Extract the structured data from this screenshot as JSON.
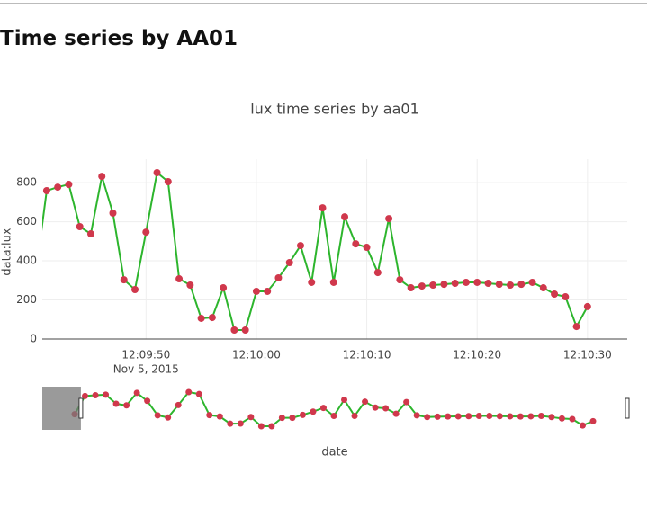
{
  "page_title": "Time series by AA01",
  "chart_data": {
    "type": "line",
    "title": "lux time series by aa01",
    "x_axis_label": "date",
    "y_axis_label": "data:lux",
    "x_date_label": "Nov 5, 2015",
    "x": [
      "2015-11-05 12:09:40",
      "2015-11-05 12:09:41",
      "2015-11-05 12:09:42",
      "2015-11-05 12:09:43",
      "2015-11-05 12:09:44",
      "2015-11-05 12:09:45",
      "2015-11-05 12:09:46",
      "2015-11-05 12:09:47",
      "2015-11-05 12:09:48",
      "2015-11-05 12:09:49",
      "2015-11-05 12:09:50",
      "2015-11-05 12:09:51",
      "2015-11-05 12:09:52",
      "2015-11-05 12:09:53",
      "2015-11-05 12:09:54",
      "2015-11-05 12:09:55",
      "2015-11-05 12:09:56",
      "2015-11-05 12:09:57",
      "2015-11-05 12:09:58",
      "2015-11-05 12:09:59",
      "2015-11-05 12:10:00",
      "2015-11-05 12:10:01",
      "2015-11-05 12:10:02",
      "2015-11-05 12:10:03",
      "2015-11-05 12:10:04",
      "2015-11-05 12:10:05",
      "2015-11-05 12:10:06",
      "2015-11-05 12:10:07",
      "2015-11-05 12:10:08",
      "2015-11-05 12:10:09",
      "2015-11-05 12:10:10",
      "2015-11-05 12:10:11",
      "2015-11-05 12:10:12",
      "2015-11-05 12:10:13",
      "2015-11-05 12:10:14",
      "2015-11-05 12:10:15",
      "2015-11-05 12:10:16",
      "2015-11-05 12:10:17",
      "2015-11-05 12:10:18",
      "2015-11-05 12:10:19",
      "2015-11-05 12:10:20",
      "2015-11-05 12:10:21",
      "2015-11-05 12:10:22",
      "2015-11-05 12:10:23",
      "2015-11-05 12:10:24",
      "2015-11-05 12:10:25",
      "2015-11-05 12:10:26",
      "2015-11-05 12:10:27",
      "2015-11-05 12:10:28",
      "2015-11-05 12:10:29",
      "2015-11-05 12:10:30"
    ],
    "series": [
      {
        "name": "lux",
        "color": "#2db52d",
        "marker_color": "#d0384c",
        "values": [
          330,
          759,
          777,
          791,
          575,
          538,
          832,
          644,
          303,
          253,
          547,
          851,
          805,
          308,
          276,
          106,
          110,
          262,
          46,
          46,
          244,
          244,
          313,
          391,
          478,
          290,
          671,
          290,
          625,
          487,
          469,
          340,
          616,
          303,
          262,
          271,
          276,
          280,
          285,
          290,
          290,
          285,
          280,
          276,
          280,
          290,
          262,
          230,
          216,
          64,
          166
        ]
      }
    ],
    "xlim": [
      "2015-11-05 12:09:40.6",
      "2015-11-05 12:10:33.6"
    ],
    "xticks": [
      {
        "value": "2015-11-05 12:09:50",
        "label": "12:09:50"
      },
      {
        "value": "2015-11-05 12:10:00",
        "label": "12:10:00"
      },
      {
        "value": "2015-11-05 12:10:10",
        "label": "12:10:10"
      },
      {
        "value": "2015-11-05 12:10:20",
        "label": "12:10:20"
      },
      {
        "value": "2015-11-05 12:10:30",
        "label": "12:10:30"
      }
    ],
    "ylim": [
      0,
      920
    ],
    "yticks": [
      0,
      200,
      400,
      600,
      800
    ],
    "grid": true,
    "range_slider": true
  }
}
